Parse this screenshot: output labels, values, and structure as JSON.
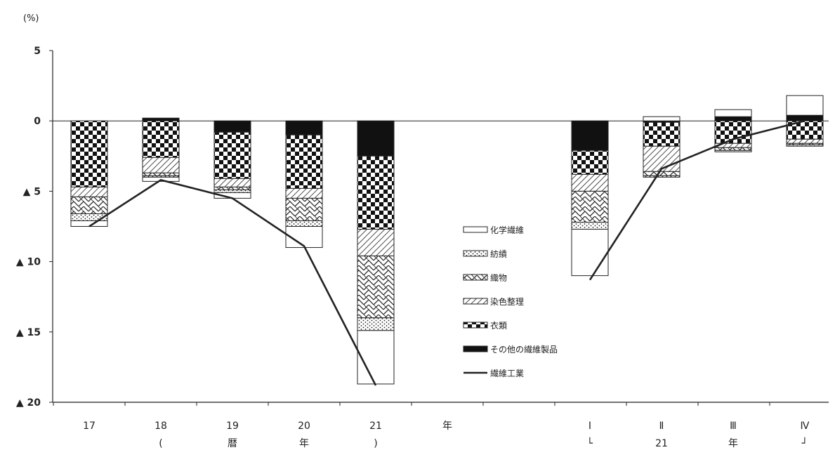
{
  "chart_data": {
    "type": "bar",
    "stacked": true,
    "unit": "(%)",
    "ylim": [
      -20,
      5
    ],
    "y_ticks": [
      {
        "value": 5,
        "label": "5"
      },
      {
        "value": 0,
        "label": "0"
      },
      {
        "value": -5,
        "label": "▲ 5"
      },
      {
        "value": -10,
        "label": "▲ 10"
      },
      {
        "value": -15,
        "label": "▲ 15"
      },
      {
        "value": -20,
        "label": "▲ 20"
      }
    ],
    "categories": [
      "17",
      "18",
      "19",
      "20",
      "21",
      "I",
      "II",
      "III",
      "IV"
    ],
    "category_labels": [
      "17",
      "18",
      "19",
      "20",
      "21",
      "Ⅰ",
      "Ⅱ",
      "Ⅲ",
      "Ⅳ"
    ],
    "group_labels": [
      {
        "text": "年",
        "row": 1,
        "after_category": 4
      },
      {
        "text": "(",
        "row": 2,
        "at_category": 1
      },
      {
        "text": "暦",
        "row": 2,
        "at_category": 2
      },
      {
        "text": "年",
        "row": 2,
        "at_category": 3
      },
      {
        "text": ")",
        "row": 2,
        "at_category": 4
      },
      {
        "text": "└",
        "row": 2,
        "at_category": 5
      },
      {
        "text": "21",
        "row": 2,
        "at_category": 6
      },
      {
        "text": "年",
        "row": 2,
        "at_category": 7
      },
      {
        "text": "┘",
        "row": 2,
        "at_category": 8
      }
    ],
    "series": [
      {
        "name": "その他の繊維製品",
        "pattern": "solid",
        "values": [
          0,
          0.2,
          -0.8,
          -1.0,
          -2.5,
          -2.1,
          -0.1,
          0.3,
          0.4
        ]
      },
      {
        "name": "衣類",
        "pattern": "check",
        "values": [
          -4.7,
          -2.6,
          -3.3,
          -3.8,
          -5.2,
          -1.7,
          -1.7,
          -1.6,
          -1.3
        ]
      },
      {
        "name": "染色整理",
        "pattern": "hatch",
        "values": [
          -0.7,
          -1.1,
          -0.6,
          -0.7,
          -1.9,
          -1.2,
          -1.8,
          -0.3,
          -0.3
        ]
      },
      {
        "name": "織物",
        "pattern": "zigzag",
        "values": [
          -1.2,
          -0.2,
          -0.2,
          -1.6,
          -4.4,
          -2.2,
          -0.3,
          -0.2,
          -0.1
        ]
      },
      {
        "name": "紡績",
        "pattern": "dots",
        "values": [
          -0.5,
          -0.1,
          -0.2,
          -0.4,
          -0.9,
          -0.5,
          -0.1,
          -0.1,
          -0.1
        ]
      },
      {
        "name": "化学繊維",
        "pattern": "white",
        "values": [
          -0.4,
          -0.3,
          -0.4,
          -1.5,
          -3.8,
          -3.3,
          0.3,
          0.5,
          1.4
        ]
      }
    ],
    "line": {
      "name": "繊維工業",
      "values": [
        -7.5,
        -4.2,
        -5.5,
        -8.9,
        -18.8,
        -11.3,
        -3.4,
        -1.3,
        0.0
      ]
    },
    "legend_order": [
      "化学繊維",
      "紡績",
      "織物",
      "染色整理",
      "衣類",
      "その他の繊維製品",
      "繊維工業"
    ]
  }
}
